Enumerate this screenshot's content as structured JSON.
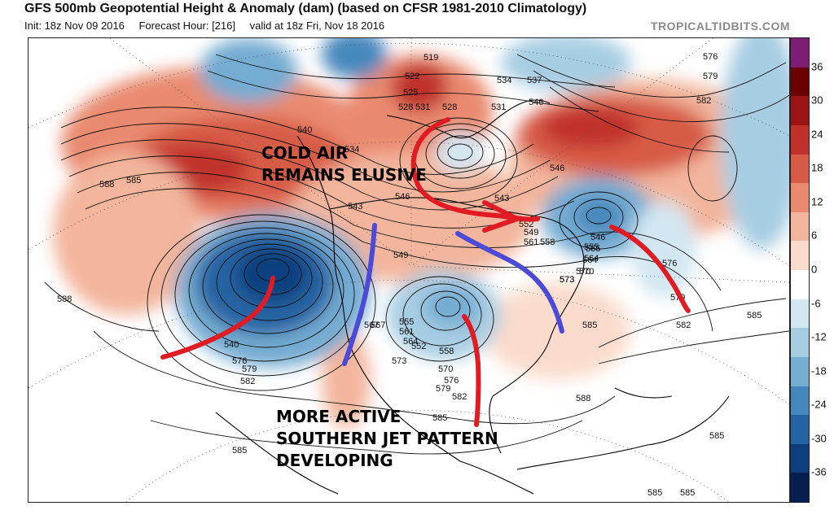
{
  "header": {
    "title": "GFS 500mb Geopotential Height & Anomaly (dam) (based on CFSR 1981-2010 Climatology)",
    "init": "Init: 18z Nov 09 2016",
    "forecast": "Forecast Hour: [216]",
    "valid": "valid at 18z Fri, Nov 18 2016",
    "brand": "TROPICALTIDBITS.COM"
  },
  "colorbar": {
    "labels": [
      "36",
      "30",
      "24",
      "18",
      "12",
      "6",
      "0",
      "-6",
      "-12",
      "-18",
      "-24",
      "-30",
      "-36"
    ],
    "colors": [
      "#7b1e74",
      "#6b0000",
      "#9a1414",
      "#c0312b",
      "#d75b47",
      "#e98a6f",
      "#f3b59c",
      "#fbdccc",
      "#ffffff",
      "#d3e7f2",
      "#a7cde3",
      "#74acd2",
      "#4688bd",
      "#2563a3",
      "#0d3f7f",
      "#061f4f"
    ]
  },
  "contours": {
    "labels": [
      "519",
      "522",
      "525",
      "528",
      "531",
      "534",
      "537",
      "540",
      "546",
      "576",
      "579",
      "582",
      "585",
      "588",
      "543",
      "546",
      "549",
      "552",
      "555",
      "558",
      "561",
      "564",
      "567",
      "570",
      "573",
      "576",
      "579",
      "582",
      "585",
      "588",
      "528",
      "531",
      "534",
      "540",
      "543",
      "546",
      "549",
      "552",
      "555",
      "558",
      "561",
      "564",
      "567",
      "570",
      "573",
      "576",
      "579",
      "582",
      "585",
      "588",
      "546",
      "555",
      "564",
      "570",
      "573",
      "585",
      "582",
      "585",
      "585",
      "585",
      "585",
      "576",
      "579"
    ]
  },
  "annotations": {
    "cold_air": [
      "COLD AIR",
      "REMAINS ELUSIVE"
    ],
    "southern_jet": [
      "MORE ACTIVE",
      "SOUTHERN JET PATTERN",
      "DEVELOPING"
    ]
  },
  "drawn_arrows": [
    {
      "color": "#e01b24",
      "meaning": "jet trough axis"
    },
    {
      "color": "#4b4bd8",
      "meaning": "ridge axis"
    }
  ]
}
